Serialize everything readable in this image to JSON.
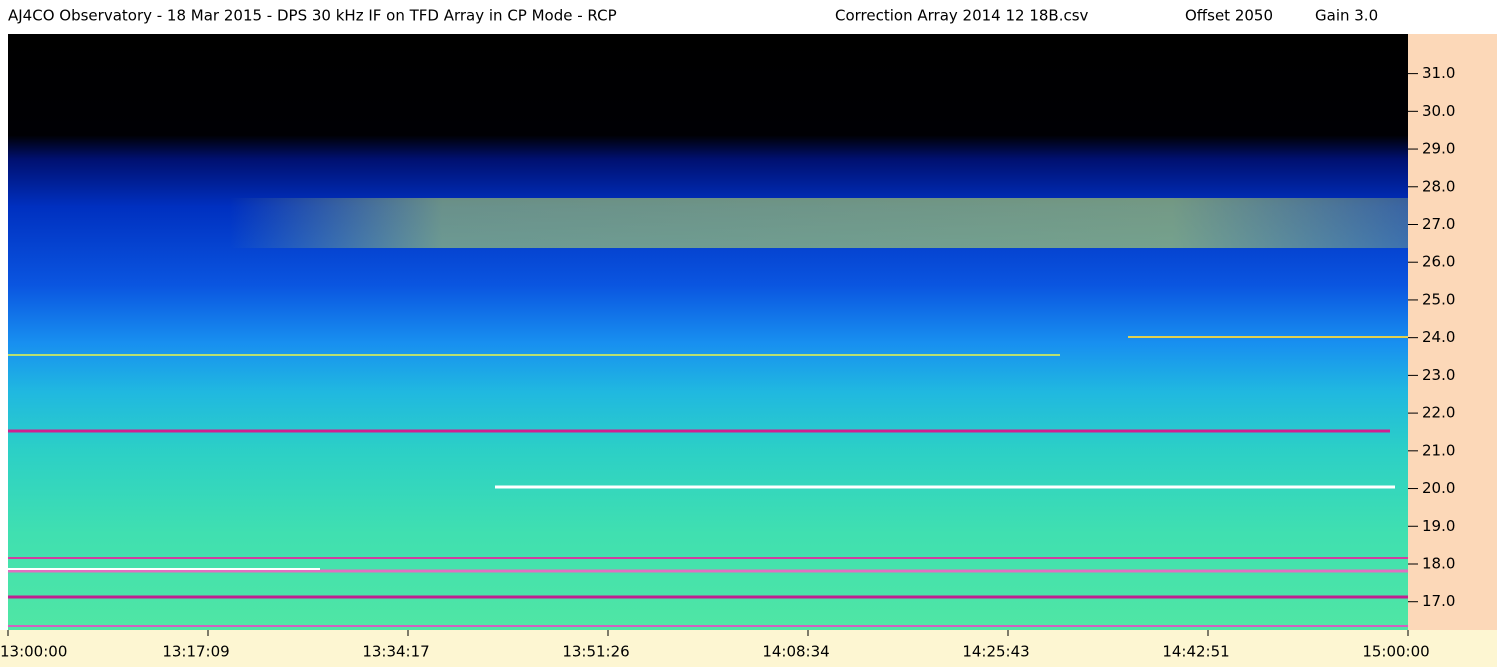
{
  "chart_data": {
    "type": "spectrogram",
    "title": "AJ4CO Observatory - 18 Mar 2015 - DPS 30 kHz IF on TFD Array in CP Mode - RCP",
    "file": "Correction Array 2014 12 18B.csv",
    "offset": "Offset 2050",
    "gain": "Gain 3.0",
    "x_tick_labels": [
      "13:00:00",
      "13:17:09",
      "13:34:17",
      "13:51:26",
      "14:08:34",
      "14:25:43",
      "14:42:51",
      "15:00:00"
    ],
    "ylim": [
      16.25,
      32.05
    ],
    "yticks": [
      {
        "value": 17,
        "label": "17.0"
      },
      {
        "value": 18,
        "label": "18.0"
      },
      {
        "value": 19,
        "label": "19.0"
      },
      {
        "value": 20,
        "label": "20.0"
      },
      {
        "value": 21,
        "label": "21.0"
      },
      {
        "value": 22,
        "label": "22.0"
      },
      {
        "value": 23,
        "label": "23.0"
      },
      {
        "value": 24,
        "label": "24.0"
      },
      {
        "value": 25,
        "label": "25.0"
      },
      {
        "value": 26,
        "label": "26.0"
      },
      {
        "value": 27,
        "label": "27.0"
      },
      {
        "value": 28,
        "label": "28.0"
      },
      {
        "value": 29,
        "label": "29.0"
      },
      {
        "value": 30,
        "label": "30.0"
      },
      {
        "value": 31,
        "label": "31.0"
      }
    ]
  }
}
